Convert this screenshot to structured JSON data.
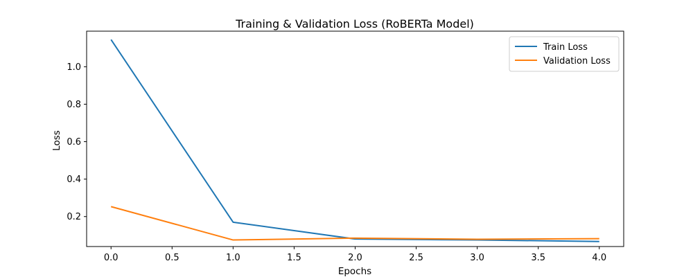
{
  "chart_data": {
    "type": "line",
    "title": "Training & Validation Loss (RoBERTa Model)",
    "xlabel": "Epochs",
    "ylabel": "Loss",
    "xlim": [
      -0.2,
      4.2
    ],
    "ylim": [
      0.04,
      1.19
    ],
    "xticks": [
      0.0,
      0.5,
      1.0,
      1.5,
      2.0,
      2.5,
      3.0,
      3.5,
      4.0
    ],
    "xtick_labels": [
      "0.0",
      "0.5",
      "1.0",
      "1.5",
      "2.0",
      "2.5",
      "3.0",
      "3.5",
      "4.0"
    ],
    "yticks": [
      0.2,
      0.4,
      0.6,
      0.8,
      1.0
    ],
    "ytick_labels": [
      "0.2",
      "0.4",
      "0.6",
      "0.8",
      "1.0"
    ],
    "grid": false,
    "legend_position": "top-right",
    "x": [
      0,
      1,
      2,
      3,
      4
    ],
    "series": [
      {
        "name": "Train Loss",
        "color": "#1f77b4",
        "values": [
          1.145,
          0.17,
          0.08,
          0.075,
          0.067
        ]
      },
      {
        "name": "Validation Loss",
        "color": "#ff7f0e",
        "values": [
          0.253,
          0.075,
          0.085,
          0.079,
          0.082
        ]
      }
    ]
  }
}
